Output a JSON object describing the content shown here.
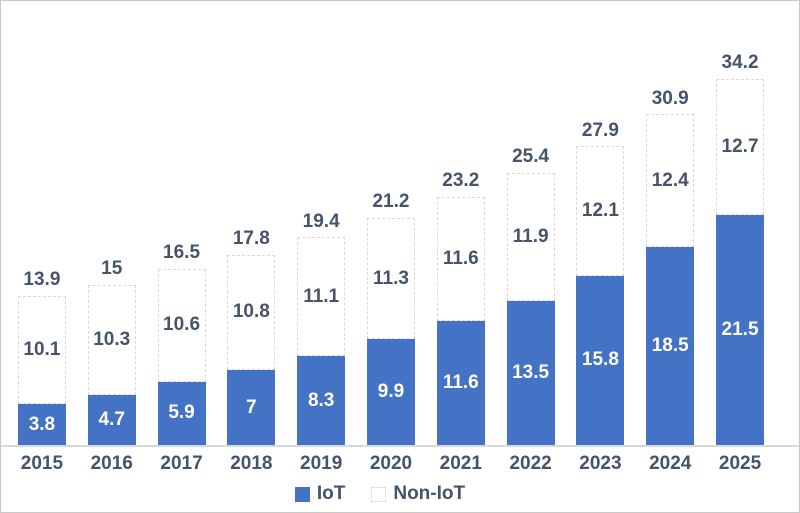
{
  "chart_data": {
    "type": "bar",
    "stacked": true,
    "title": "",
    "categories": [
      "2015",
      "2016",
      "2017",
      "2018",
      "2019",
      "2020",
      "2021",
      "2022",
      "2023",
      "2024",
      "2025"
    ],
    "series": [
      {
        "name": "IoT",
        "color": "#4472C4",
        "values": [
          3.8,
          4.7,
          5.9,
          7,
          8.3,
          9.9,
          11.6,
          13.5,
          15.8,
          18.5,
          21.5
        ]
      },
      {
        "name": "Non-IoT",
        "color": "#FFFFFF",
        "border_style": "dashed",
        "border_color": "#D9D9D9",
        "values": [
          10.1,
          10.3,
          10.6,
          10.8,
          11.1,
          11.3,
          11.6,
          11.9,
          12.1,
          12.4,
          12.7
        ]
      }
    ],
    "totals": [
      13.9,
      15,
      16.5,
      17.8,
      19.4,
      21.2,
      23.2,
      25.4,
      27.9,
      30.9,
      34.2
    ],
    "data_labels": "inside-center",
    "total_labels": "above-stack",
    "value_axis_visible": false,
    "gridlines": false,
    "legend_position": "bottom"
  },
  "colors": {
    "iot_fill": "#4472C4",
    "label_text": "#44546A",
    "iot_label_text": "#FFFFFF",
    "dash_border": "#D9D9D9",
    "axis_line": "#D9D9D9"
  }
}
